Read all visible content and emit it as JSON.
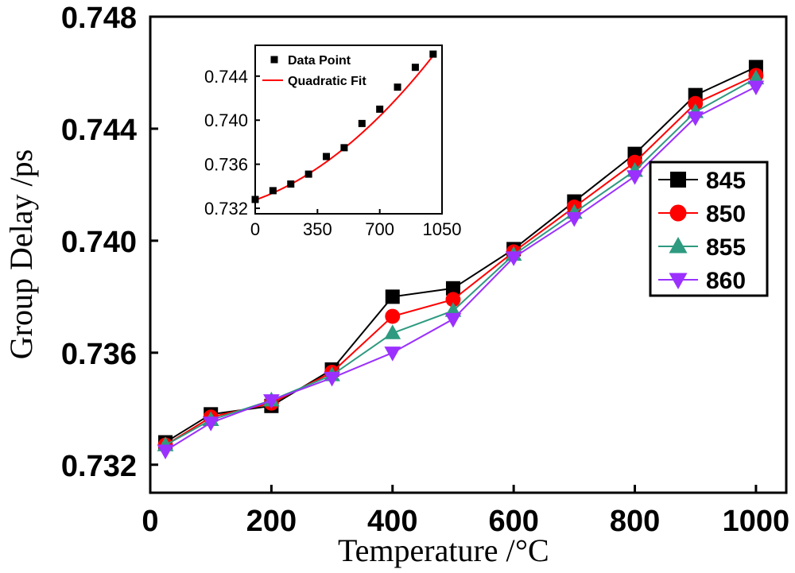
{
  "chart_data": [
    {
      "type": "line",
      "title": "",
      "xlabel": "Temperature /",
      "xlabel_unit": "°C",
      "ylabel": "Group Delay /ps",
      "xlim": [
        0,
        1050
      ],
      "ylim": [
        0.731,
        0.748
      ],
      "x_ticks": [
        "0",
        "200",
        "400",
        "600",
        "800",
        "1000"
      ],
      "y_ticks": [
        "0.732",
        "0.736",
        "0.740",
        "0.744",
        "0.748"
      ],
      "legend_position": "right",
      "x": [
        25,
        100,
        200,
        300,
        400,
        500,
        600,
        700,
        800,
        900,
        1000
      ],
      "series": [
        {
          "name": "845",
          "color": "#000000",
          "marker": "square",
          "values": [
            0.7328,
            0.7338,
            0.7341,
            0.7354,
            0.738,
            0.7383,
            0.7397,
            0.7414,
            0.7431,
            0.7452,
            0.7462
          ]
        },
        {
          "name": "850",
          "color": "#ff0000",
          "marker": "circle",
          "values": [
            0.7327,
            0.7337,
            0.7342,
            0.7353,
            0.7373,
            0.7379,
            0.7396,
            0.7412,
            0.7428,
            0.7449,
            0.7459
          ]
        },
        {
          "name": "855",
          "color": "#2e9a80",
          "marker": "triangle-up",
          "values": [
            0.7327,
            0.7336,
            0.7343,
            0.7352,
            0.7367,
            0.7375,
            0.7395,
            0.741,
            0.7425,
            0.7446,
            0.7458
          ]
        },
        {
          "name": "860",
          "color": "#9b30ff",
          "marker": "triangle-down",
          "values": [
            0.7325,
            0.7335,
            0.7343,
            0.7351,
            0.736,
            0.7372,
            0.7394,
            0.7408,
            0.7423,
            0.7444,
            0.7455
          ]
        }
      ]
    },
    {
      "type": "scatter",
      "title": "",
      "xlim": [
        0,
        1050
      ],
      "ylim": [
        0.7315,
        0.7468
      ],
      "x_ticks": [
        "0",
        "350",
        "700",
        "1050"
      ],
      "y_ticks": [
        "0.732",
        "0.736",
        "0.740",
        "0.744"
      ],
      "legend_position": "top-left",
      "x": [
        0,
        100,
        200,
        300,
        400,
        500,
        600,
        700,
        800,
        900,
        1000
      ],
      "series": [
        {
          "name": "Data Point",
          "color": "#000000",
          "marker": "square",
          "values": [
            0.7328,
            0.7336,
            0.7342,
            0.7351,
            0.7367,
            0.7375,
            0.7397,
            0.741,
            0.743,
            0.7448,
            0.746
          ]
        },
        {
          "name": "Quadratic Fit",
          "color": "#ff0000",
          "style": "line",
          "fit": {
            "a": 0.73275,
            "b": 5.7e-06,
            "c": 7.4e-09
          }
        }
      ]
    }
  ]
}
